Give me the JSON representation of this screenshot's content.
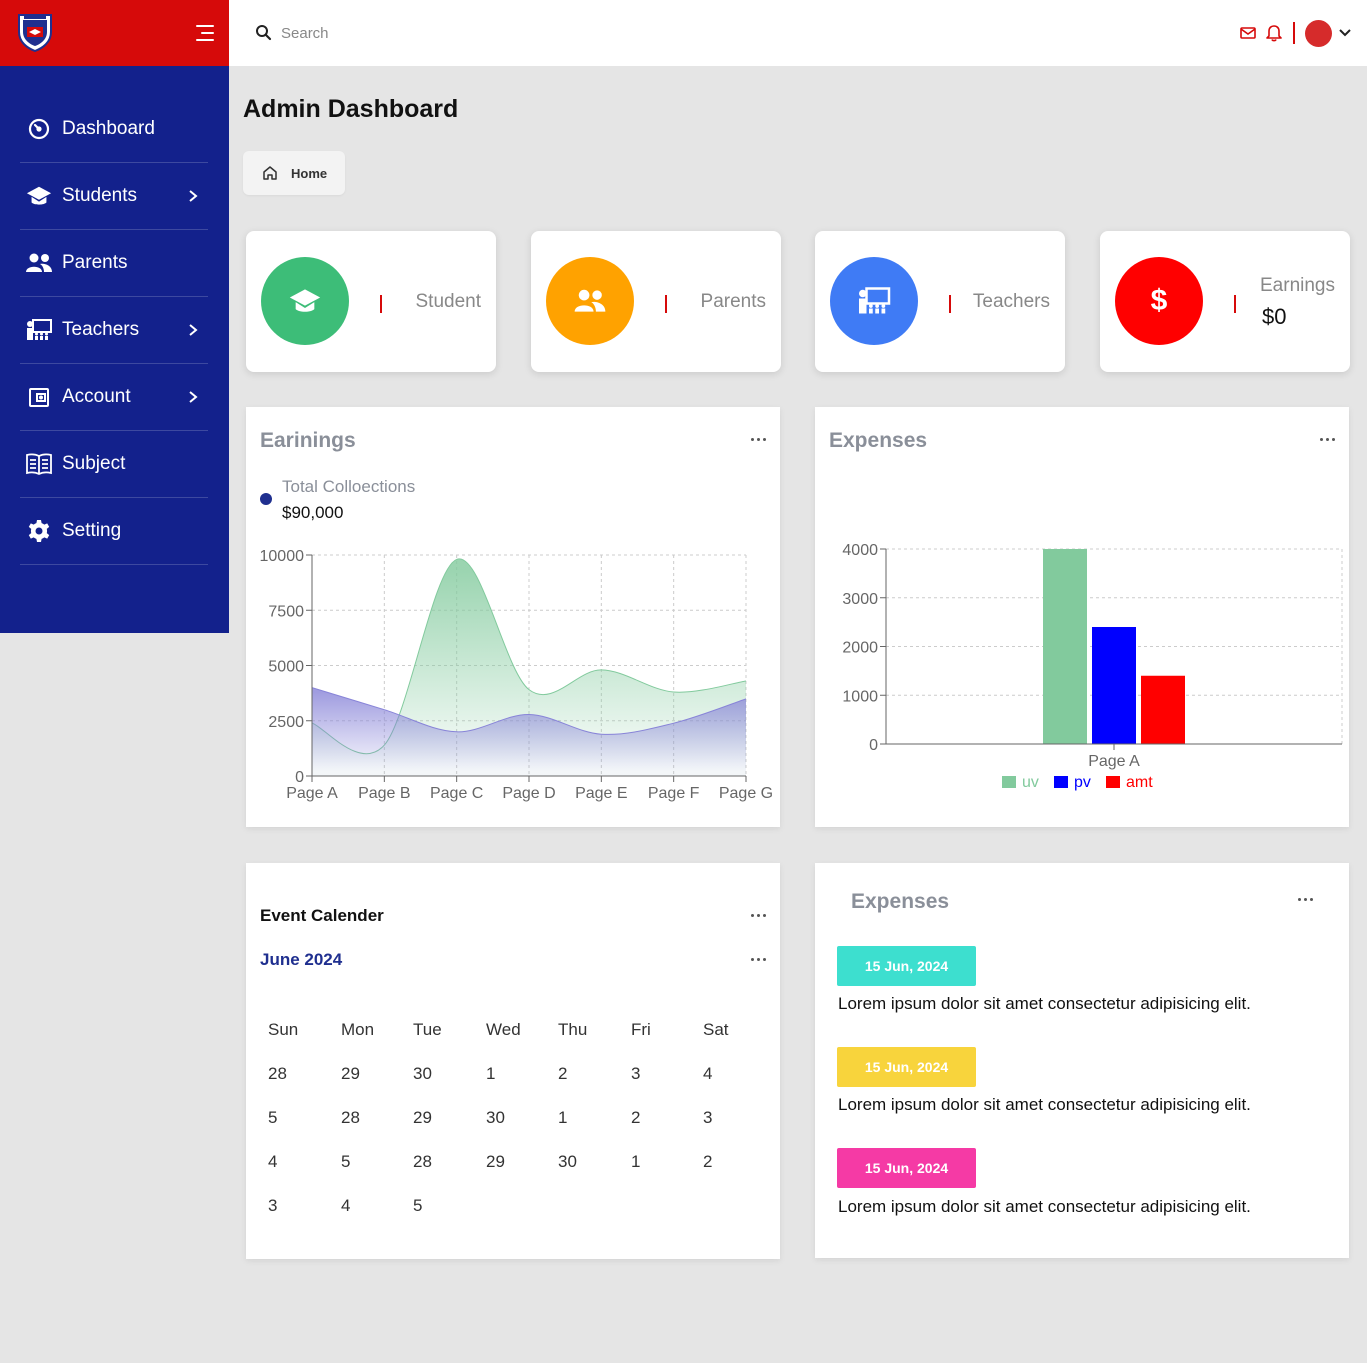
{
  "header": {
    "search_placeholder": "Search"
  },
  "colors": {
    "brand_red": "#d60a0a",
    "sidebar_blue": "#13218c",
    "green": "#3dbd78",
    "orange": "#ffa200",
    "blue": "#3f7bf5",
    "red": "#ff0000"
  },
  "sidebar": {
    "items": [
      {
        "label": "Dashboard",
        "icon": "dashboard-icon",
        "has_submenu": false
      },
      {
        "label": "Students",
        "icon": "graduation-cap-icon",
        "has_submenu": true
      },
      {
        "label": "Parents",
        "icon": "users-icon",
        "has_submenu": false
      },
      {
        "label": "Teachers",
        "icon": "teacher-icon",
        "has_submenu": true
      },
      {
        "label": "Account",
        "icon": "wallet-icon",
        "has_submenu": true
      },
      {
        "label": "Subject",
        "icon": "book-icon",
        "has_submenu": false
      },
      {
        "label": "Setting",
        "icon": "gear-icon",
        "has_submenu": false
      }
    ]
  },
  "page": {
    "title": "Admin Dashboard",
    "breadcrumb": "Home"
  },
  "stats": [
    {
      "label": "Student",
      "icon": "graduation-cap-icon",
      "color": "#3dbd78"
    },
    {
      "label": "Parents",
      "icon": "users-icon",
      "color": "#ffa200"
    },
    {
      "label": "Teachers",
      "icon": "teacher-icon",
      "color": "#3f7bf5"
    },
    {
      "label": "Earnings",
      "value": "$0",
      "icon": "dollar-icon",
      "color": "#ff0000"
    }
  ],
  "earnings_panel": {
    "title": "Earinings",
    "collection_label": "Total Colloections",
    "collection_value": "$90,000"
  },
  "expenses_chart_panel": {
    "title": "Expenses"
  },
  "calendar": {
    "title": "Event Calender",
    "month": "June 2024",
    "weekdays": [
      "Sun",
      "Mon",
      "Tue",
      "Wed",
      "Thu",
      "Fri",
      "Sat"
    ],
    "weeks": [
      [
        "28",
        "29",
        "30",
        "1",
        "2",
        "3",
        "4"
      ],
      [
        "5",
        "28",
        "29",
        "30",
        "1",
        "2",
        "3"
      ],
      [
        "4",
        "5",
        "28",
        "29",
        "30",
        "1",
        "2"
      ],
      [
        "3",
        "4",
        "5"
      ]
    ]
  },
  "events_panel": {
    "title": "Expenses",
    "events": [
      {
        "date": "15 Jun, 2024",
        "color": "#3ddfcf",
        "text": "Lorem ipsum dolor sit amet consectetur adipisicing elit."
      },
      {
        "date": "15 Jun, 2024",
        "color": "#f8d43c",
        "text": "Lorem ipsum dolor sit amet consectetur adipisicing elit."
      },
      {
        "date": "15 Jun, 2024",
        "color": "#f53aa5",
        "text": "Lorem ipsum dolor sit amet consectetur adipisicing elit."
      }
    ]
  },
  "chart_data": [
    {
      "type": "area",
      "x": [
        "Page A",
        "Page B",
        "Page C",
        "Page D",
        "Page E",
        "Page F",
        "Page G"
      ],
      "yticks": [
        "0",
        "2500",
        "5000",
        "7500",
        "10000"
      ],
      "ylim": [
        0,
        10000
      ],
      "grid": true,
      "series": [
        {
          "color": "#82ca9d",
          "values": [
            2400,
            1398,
            9800,
            3908,
            4800,
            3800,
            4300
          ]
        },
        {
          "color": "#8884d8",
          "values": [
            4000,
            3000,
            2000,
            2780,
            1890,
            2390,
            3490
          ]
        }
      ]
    },
    {
      "type": "bar",
      "categories": [
        "Page A"
      ],
      "yticks": [
        "0",
        "1000",
        "2000",
        "3000",
        "4000"
      ],
      "ylim": [
        0,
        4000
      ],
      "grid": true,
      "legend": "bottom",
      "series": [
        {
          "name": "uv",
          "color": "#82ca9d",
          "values": [
            4000
          ]
        },
        {
          "name": "pv",
          "color": "#0000ff",
          "values": [
            2400
          ]
        },
        {
          "name": "amt",
          "color": "#ff0000",
          "values": [
            1400
          ]
        }
      ]
    }
  ]
}
